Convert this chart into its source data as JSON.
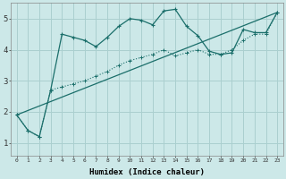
{
  "title": "",
  "xlabel": "Humidex (Indice chaleur)",
  "ylabel": "",
  "bg_color": "#cce8e8",
  "grid_color": "#aacfcf",
  "line_color": "#1a6e6a",
  "xlim": [
    -0.5,
    23.5
  ],
  "ylim": [
    0.6,
    5.5
  ],
  "xticks": [
    0,
    1,
    2,
    3,
    4,
    5,
    6,
    7,
    8,
    9,
    10,
    11,
    12,
    13,
    14,
    15,
    16,
    17,
    18,
    19,
    20,
    21,
    22,
    23
  ],
  "yticks": [
    1,
    2,
    3,
    4,
    5
  ],
  "series1_x": [
    0,
    1,
    2,
    3,
    4,
    5,
    6,
    7,
    8,
    9,
    10,
    11,
    12,
    13,
    14,
    15,
    16,
    17,
    18,
    19,
    20,
    21,
    22,
    23
  ],
  "series1_y": [
    1.9,
    1.4,
    1.2,
    2.7,
    4.5,
    4.4,
    4.3,
    4.1,
    4.4,
    4.75,
    5.0,
    4.95,
    4.8,
    5.25,
    5.3,
    4.75,
    4.45,
    3.95,
    3.85,
    3.9,
    4.65,
    4.55,
    4.55,
    5.2
  ],
  "series2_x": [
    0,
    1,
    2,
    3,
    4,
    5,
    6,
    7,
    8,
    9,
    10,
    11,
    12,
    13,
    14,
    15,
    16,
    17,
    18,
    19,
    20,
    21,
    22,
    23
  ],
  "series2_y": [
    1.9,
    1.4,
    1.2,
    2.7,
    2.8,
    2.9,
    3.0,
    3.15,
    3.3,
    3.5,
    3.65,
    3.75,
    3.85,
    4.0,
    3.8,
    3.9,
    4.0,
    3.85,
    3.85,
    4.0,
    4.3,
    4.5,
    4.5,
    5.2
  ],
  "series3_x": [
    0,
    23
  ],
  "series3_y": [
    1.9,
    5.2
  ]
}
